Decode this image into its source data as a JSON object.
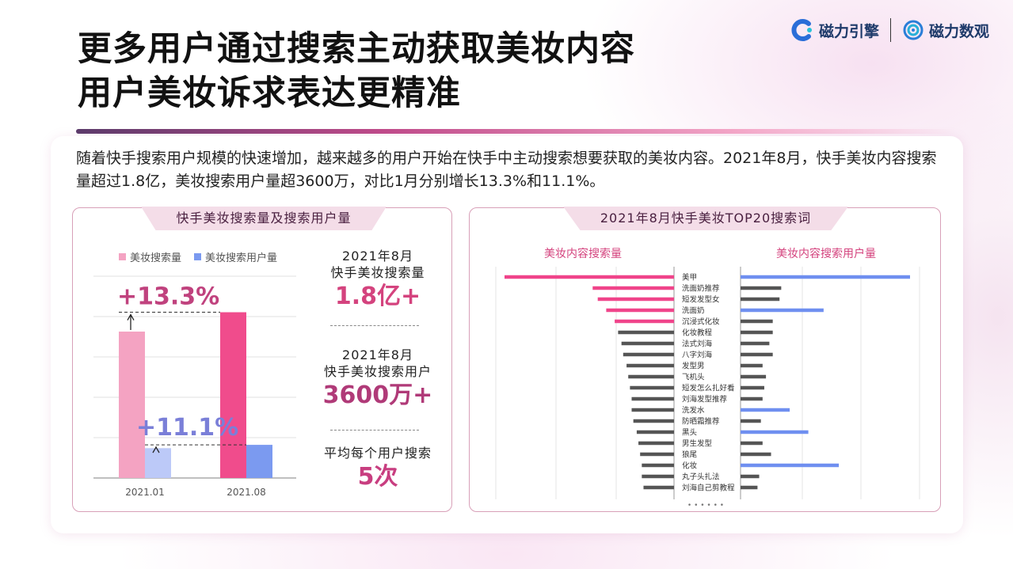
{
  "title_lines": [
    "更多用户通过搜索主动获取美妆内容",
    "用户美妆诉求表达更精准"
  ],
  "logos": [
    {
      "name": "磁力引擎",
      "color": "#2a6ed8"
    },
    {
      "name": "磁力数观",
      "color": "#2a7ed8"
    }
  ],
  "intro": "随着快手搜索用户规模的快速增加，越来越多的用户开始在快手中主动搜索想要获取的美妆内容。2021年8月，快手美妆内容搜索量超过1.8亿，美妆搜索用户量超3600万，对比1月分别增长13.3%和11.1%。",
  "left_panel": {
    "tab": "快手美妆搜索量及搜索用户量",
    "growth_labels": [
      "+13.3%",
      "+11.1%"
    ],
    "stats": [
      {
        "label_lines": [
          "2021年8月",
          "快手美妆搜索量"
        ],
        "value": "1.8亿+",
        "color": "#d4437e"
      },
      {
        "label_lines": [
          "2021年8月",
          "快手美妆搜索用户"
        ],
        "value": "3600万+",
        "color": "#b03a78"
      },
      {
        "label_lines": [
          "平均每个用户搜索"
        ],
        "value": "5次",
        "color": "#c83e80"
      }
    ]
  },
  "right_panel": {
    "tab": "2021年8月快手美妆TOP20搜索词",
    "more": "• • • • • •"
  },
  "chart_data": [
    {
      "type": "bar",
      "categories": [
        "2021.01",
        "2021.08"
      ],
      "series": [
        {
          "name": "美妆搜索量",
          "values": [
            1.59,
            1.8
          ],
          "color": "#f4a3c2"
        },
        {
          "name": "美妆搜索用户量",
          "values": [
            0.324,
            0.36
          ],
          "color": "#7b9af0"
        }
      ],
      "series_colors_alt": [
        "#f04c8c",
        "#7b9af0"
      ],
      "light_colors": [
        "#f4a3c2",
        "#bcc9f8"
      ],
      "ylim": [
        0,
        2.2
      ],
      "grid": true,
      "legend": "top-left"
    },
    {
      "type": "bar",
      "orientation": "horizontal",
      "categories": [
        "美甲",
        "洗面奶推荐",
        "短发发型女",
        "洗面奶",
        "沉浸式化妆",
        "化妆教程",
        "法式刘海",
        "八字刘海",
        "发型男",
        "飞机头",
        "短发怎么扎好看",
        "刘海发型推荐",
        "洗发水",
        "防晒霜推荐",
        "黑头",
        "男生发型",
        "狼尾",
        "化妆",
        "丸子头扎法",
        "刘海自己剪教程"
      ],
      "series": [
        {
          "name": "美妆内容搜索量",
          "values": [
            100,
            48,
            45,
            40,
            35,
            33,
            31,
            30,
            28,
            27,
            26,
            25,
            25,
            24,
            22,
            21,
            20,
            19,
            19,
            18
          ],
          "color": "#f0448a"
        },
        {
          "name": "美妆内容搜索用户量",
          "values": [
            100,
            24,
            23,
            49,
            19,
            19,
            17,
            19,
            13,
            15,
            14,
            13,
            29,
            12,
            40,
            13,
            18,
            58,
            11,
            10
          ],
          "color": "#6f8ff0",
          "neutral_color": "#555555"
        }
      ],
      "highlight_top": {
        "美妆内容搜索量": 5,
        "美妆内容搜索用户量": [
          "美甲",
          "洗面奶",
          "洗发水",
          "黑头",
          "化妆"
        ]
      },
      "grid": true
    }
  ]
}
